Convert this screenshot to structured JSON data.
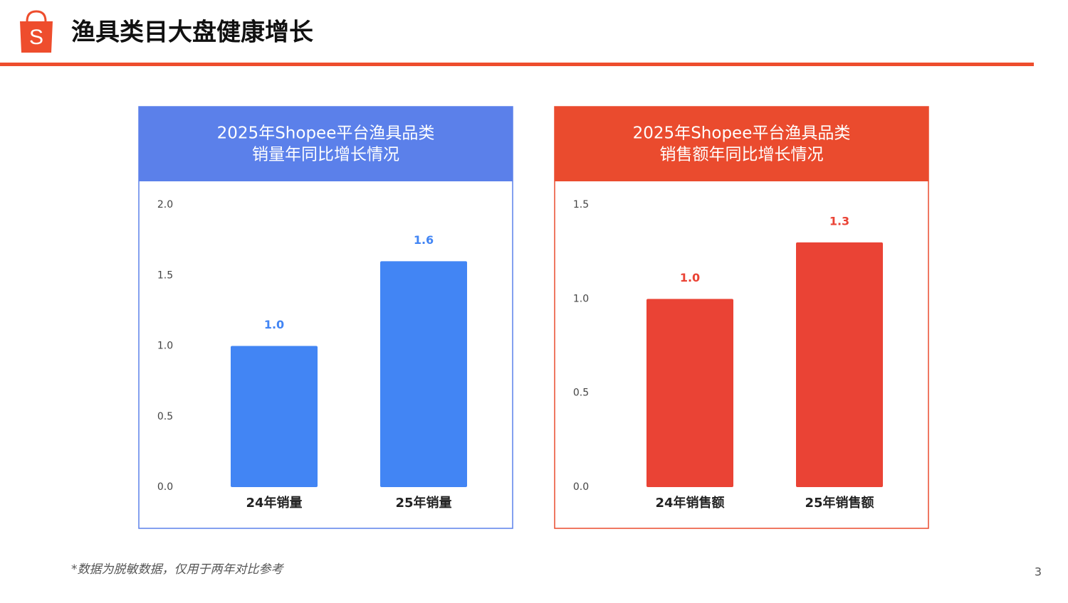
{
  "header": {
    "title": "渔具类目大盘健康增长"
  },
  "chart_data": [
    {
      "type": "bar",
      "title": [
        "2025年Shopee平台渔具品类",
        "销量年同比增长情况"
      ],
      "header_color": "#5b80ea",
      "categories": [
        "24年销量",
        "25年销量"
      ],
      "values": [
        1.0,
        1.6
      ],
      "value_labels": [
        "1.0",
        "1.6"
      ],
      "color": "#4285f4",
      "ylim": [
        0,
        2
      ],
      "yticks": [
        {
          "value": 0,
          "label": "0.0"
        },
        {
          "value": 0.5,
          "label": "0.5"
        },
        {
          "value": 1,
          "label": "1.0"
        },
        {
          "value": 1.5,
          "label": "1.5"
        },
        {
          "value": 2,
          "label": "2.0"
        }
      ],
      "grid": false
    },
    {
      "type": "bar",
      "title": [
        "2025年Shopee平台渔具品类",
        "销售额年同比增长情况"
      ],
      "header_color": "#ea4b2e",
      "categories": [
        "24年销售额",
        "25年销售额"
      ],
      "values": [
        1.0,
        1.3
      ],
      "value_labels": [
        "1.0",
        "1.3"
      ],
      "color": "#ea4335",
      "ylim": [
        0,
        1.5
      ],
      "yticks": [
        {
          "value": 0,
          "label": "0.0"
        },
        {
          "value": 0.5,
          "label": "0.5"
        },
        {
          "value": 1,
          "label": "1.0"
        },
        {
          "value": 1.5,
          "label": "1.5"
        }
      ],
      "grid": false
    }
  ],
  "footnote": "*数据为脱敏数据，仅用于两年对比参考",
  "page_number": "3"
}
